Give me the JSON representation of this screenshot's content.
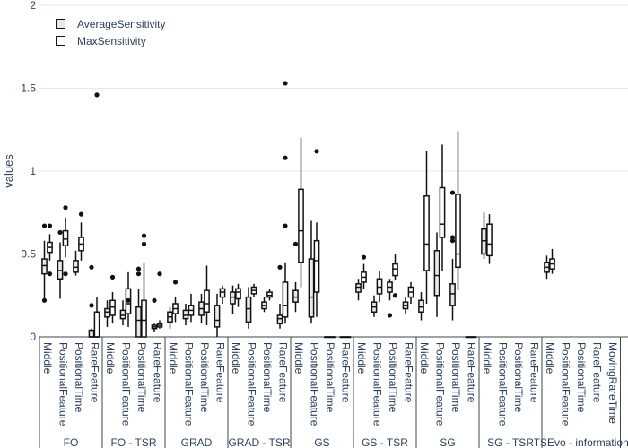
{
  "chart_data": {
    "type": "box",
    "ylabel": "values",
    "ylim": [
      0,
      2
    ],
    "yticks": [
      0,
      0.5,
      1,
      1.5,
      2
    ],
    "ytick_labels": [
      "0",
      "0.5",
      "1",
      "1.5",
      "2"
    ],
    "legend_position": "top-left",
    "series": [
      {
        "name": "AverageSensitivity",
        "fill": "#e8e8e8"
      },
      {
        "name": "MaxSensitivity",
        "fill": "#ffffff"
      }
    ],
    "groups": [
      {
        "label": "FO",
        "subcategories": [
          "Middle",
          "PositionalFeature",
          "PositionalTime",
          "RareFeature"
        ]
      },
      {
        "label": "FO - TSR",
        "subcategories": [
          "Middle",
          "PositionalFeature",
          "PositionalTime",
          "RareFeature"
        ]
      },
      {
        "label": "GRAD",
        "subcategories": [
          "Middle",
          "PositionalFeature",
          "PositionalTime",
          "RareFeature"
        ]
      },
      {
        "label": "GRAD - TSR",
        "subcategories": [
          "Middle",
          "PositionalFeature",
          "PositionalTime",
          "RareFeature"
        ]
      },
      {
        "label": "GS",
        "subcategories": [
          "Middle",
          "PositionalFeature",
          "PositionalTime",
          "RareFeature"
        ]
      },
      {
        "label": "GS - TSR",
        "subcategories": [
          "Middle",
          "PositionalFeature",
          "PositionalTime",
          "RareFeature"
        ]
      },
      {
        "label": "SG",
        "subcategories": [
          "Middle",
          "PositionalFeature",
          "PositionalTime",
          "RareFeature"
        ]
      },
      {
        "label": "SG - TSR",
        "subcategories": [
          "Middle",
          "PositionalFeature",
          "PositionalTime",
          "RareFeature"
        ]
      },
      {
        "label": "TSEvo - information",
        "subcategories": [
          "Middle",
          "PositionalFeature",
          "PositionalTime",
          "RareFeature",
          "MovingRareTime"
        ]
      }
    ],
    "boxes": [
      {
        "category": 0,
        "series": 0,
        "min": 0.22,
        "q1": 0.38,
        "median": 0.43,
        "q3": 0.47,
        "max": 0.58,
        "outliers": [
          0.67,
          0.22
        ]
      },
      {
        "category": 0,
        "series": 1,
        "min": 0.46,
        "q1": 0.51,
        "median": 0.54,
        "q3": 0.57,
        "max": 0.62,
        "outliers": [
          0.67,
          0.38
        ]
      },
      {
        "category": 1,
        "series": 0,
        "min": 0.23,
        "q1": 0.35,
        "median": 0.4,
        "q3": 0.46,
        "max": 0.57,
        "outliers": [
          0.63
        ]
      },
      {
        "category": 1,
        "series": 1,
        "min": 0.48,
        "q1": 0.55,
        "median": 0.59,
        "q3": 0.64,
        "max": 0.72,
        "outliers": [
          0.78,
          0.38
        ]
      },
      {
        "category": 2,
        "series": 0,
        "min": 0.37,
        "q1": 0.39,
        "median": 0.42,
        "q3": 0.46,
        "max": 0.52,
        "outliers": []
      },
      {
        "category": 2,
        "series": 1,
        "min": 0.46,
        "q1": 0.52,
        "median": 0.56,
        "q3": 0.6,
        "max": 0.69,
        "outliers": [
          0.74
        ]
      },
      {
        "category": 3,
        "series": 0,
        "min": 0.0,
        "q1": 0.0,
        "median": 0.0,
        "q3": 0.04,
        "max": 0.05,
        "outliers": [
          0.19,
          0.42
        ]
      },
      {
        "category": 3,
        "series": 1,
        "min": 0.0,
        "q1": 0.0,
        "median": 0.0,
        "q3": 0.15,
        "max": 0.24,
        "outliers": [
          1.46
        ]
      },
      {
        "category": 4,
        "series": 0,
        "min": 0.06,
        "q1": 0.12,
        "median": 0.15,
        "q3": 0.17,
        "max": 0.22,
        "outliers": []
      },
      {
        "category": 4,
        "series": 1,
        "min": 0.08,
        "q1": 0.13,
        "median": 0.18,
        "q3": 0.22,
        "max": 0.27,
        "outliers": [
          0.36
        ]
      },
      {
        "category": 5,
        "series": 0,
        "min": 0.07,
        "q1": 0.11,
        "median": 0.13,
        "q3": 0.16,
        "max": 0.22,
        "outliers": []
      },
      {
        "category": 5,
        "series": 1,
        "min": 0.06,
        "q1": 0.14,
        "median": 0.2,
        "q3": 0.29,
        "max": 0.39,
        "outliers": [
          0.22
        ]
      },
      {
        "category": 6,
        "series": 0,
        "min": 0.0,
        "q1": 0.0,
        "median": 0.1,
        "q3": 0.18,
        "max": 0.29,
        "outliers": [
          0.41,
          0.38
        ]
      },
      {
        "category": 6,
        "series": 1,
        "min": 0.0,
        "q1": 0.0,
        "median": 0.1,
        "q3": 0.22,
        "max": 0.45,
        "outliers": [
          0.61,
          0.56
        ]
      },
      {
        "category": 7,
        "series": 0,
        "min": 0.03,
        "q1": 0.05,
        "median": 0.06,
        "q3": 0.07,
        "max": 0.08,
        "outliers": [
          0.22
        ]
      },
      {
        "category": 7,
        "series": 1,
        "min": 0.05,
        "q1": 0.06,
        "median": 0.07,
        "q3": 0.08,
        "max": 0.1,
        "outliers": [
          0.38
        ]
      },
      {
        "category": 8,
        "series": 0,
        "min": 0.05,
        "q1": 0.09,
        "median": 0.12,
        "q3": 0.15,
        "max": 0.18,
        "outliers": []
      },
      {
        "category": 8,
        "series": 1,
        "min": 0.09,
        "q1": 0.14,
        "median": 0.17,
        "q3": 0.2,
        "max": 0.24,
        "outliers": [
          0.33
        ]
      },
      {
        "category": 9,
        "series": 0,
        "min": 0.07,
        "q1": 0.11,
        "median": 0.13,
        "q3": 0.16,
        "max": 0.2,
        "outliers": []
      },
      {
        "category": 9,
        "series": 1,
        "min": 0.09,
        "q1": 0.13,
        "median": 0.16,
        "q3": 0.19,
        "max": 0.26,
        "outliers": []
      },
      {
        "category": 10,
        "series": 0,
        "min": 0.08,
        "q1": 0.13,
        "median": 0.17,
        "q3": 0.21,
        "max": 0.26,
        "outliers": []
      },
      {
        "category": 10,
        "series": 1,
        "min": 0.07,
        "q1": 0.15,
        "median": 0.2,
        "q3": 0.28,
        "max": 0.43,
        "outliers": []
      },
      {
        "category": 11,
        "series": 0,
        "min": 0.0,
        "q1": 0.06,
        "median": 0.1,
        "q3": 0.19,
        "max": 0.26,
        "outliers": []
      },
      {
        "category": 11,
        "series": 1,
        "min": 0.2,
        "q1": 0.24,
        "median": 0.27,
        "q3": 0.29,
        "max": 0.31,
        "outliers": []
      },
      {
        "category": 12,
        "series": 0,
        "min": 0.14,
        "q1": 0.2,
        "median": 0.24,
        "q3": 0.27,
        "max": 0.31,
        "outliers": []
      },
      {
        "category": 12,
        "series": 1,
        "min": 0.18,
        "q1": 0.23,
        "median": 0.27,
        "q3": 0.29,
        "max": 0.32,
        "outliers": []
      },
      {
        "category": 13,
        "series": 0,
        "min": 0.05,
        "q1": 0.09,
        "median": 0.17,
        "q3": 0.24,
        "max": 0.3,
        "outliers": []
      },
      {
        "category": 13,
        "series": 1,
        "min": 0.24,
        "q1": 0.26,
        "median": 0.28,
        "q3": 0.3,
        "max": 0.32,
        "outliers": []
      },
      {
        "category": 14,
        "series": 0,
        "min": 0.15,
        "q1": 0.17,
        "median": 0.19,
        "q3": 0.21,
        "max": 0.24,
        "outliers": []
      },
      {
        "category": 14,
        "series": 1,
        "min": 0.22,
        "q1": 0.24,
        "median": 0.25,
        "q3": 0.27,
        "max": 0.29,
        "outliers": []
      },
      {
        "category": 15,
        "series": 0,
        "min": 0.05,
        "q1": 0.08,
        "median": 0.11,
        "q3": 0.13,
        "max": 0.2,
        "outliers": [
          0.42
        ]
      },
      {
        "category": 15,
        "series": 1,
        "min": 0.08,
        "q1": 0.12,
        "median": 0.19,
        "q3": 0.33,
        "max": 0.45,
        "outliers": [
          1.53,
          1.08,
          0.67
        ]
      },
      {
        "category": 16,
        "series": 0,
        "min": 0.15,
        "q1": 0.21,
        "median": 0.24,
        "q3": 0.28,
        "max": 0.33,
        "outliers": [
          0.56
        ]
      },
      {
        "category": 16,
        "series": 1,
        "min": 0.3,
        "q1": 0.45,
        "median": 0.64,
        "q3": 0.89,
        "max": 1.2,
        "outliers": []
      },
      {
        "category": 17,
        "series": 0,
        "min": 0.08,
        "q1": 0.12,
        "median": 0.24,
        "q3": 0.47,
        "max": 0.7,
        "outliers": []
      },
      {
        "category": 17,
        "series": 1,
        "min": 0.12,
        "q1": 0.27,
        "median": 0.46,
        "q3": 0.58,
        "max": 0.69,
        "outliers": [
          1.12
        ]
      },
      {
        "category": 18,
        "series": 0,
        "min": 0.0,
        "q1": 0.0,
        "median": 0.0,
        "q3": 0.0,
        "max": 0.0,
        "outliers": []
      },
      {
        "category": 18,
        "series": 1,
        "min": 0.0,
        "q1": 0.0,
        "median": 0.0,
        "q3": 0.0,
        "max": 0.0,
        "outliers": []
      },
      {
        "category": 19,
        "series": 0,
        "min": 0.0,
        "q1": 0.0,
        "median": 0.0,
        "q3": 0.0,
        "max": 0.0,
        "outliers": []
      },
      {
        "category": 19,
        "series": 1,
        "min": 0.0,
        "q1": 0.0,
        "median": 0.0,
        "q3": 0.0,
        "max": 0.0,
        "outliers": []
      },
      {
        "category": 20,
        "series": 0,
        "min": 0.22,
        "q1": 0.27,
        "median": 0.3,
        "q3": 0.32,
        "max": 0.35,
        "outliers": []
      },
      {
        "category": 20,
        "series": 1,
        "min": 0.29,
        "q1": 0.33,
        "median": 0.36,
        "q3": 0.39,
        "max": 0.44,
        "outliers": [
          0.48
        ]
      },
      {
        "category": 21,
        "series": 0,
        "min": 0.12,
        "q1": 0.15,
        "median": 0.18,
        "q3": 0.21,
        "max": 0.25,
        "outliers": []
      },
      {
        "category": 21,
        "series": 1,
        "min": 0.21,
        "q1": 0.26,
        "median": 0.3,
        "q3": 0.35,
        "max": 0.4,
        "outliers": []
      },
      {
        "category": 22,
        "series": 0,
        "min": 0.22,
        "q1": 0.27,
        "median": 0.3,
        "q3": 0.33,
        "max": 0.35,
        "outliers": [
          0.13
        ]
      },
      {
        "category": 22,
        "series": 1,
        "min": 0.34,
        "q1": 0.37,
        "median": 0.41,
        "q3": 0.44,
        "max": 0.5,
        "outliers": [
          0.25
        ]
      },
      {
        "category": 23,
        "series": 0,
        "min": 0.14,
        "q1": 0.17,
        "median": 0.19,
        "q3": 0.21,
        "max": 0.24,
        "outliers": []
      },
      {
        "category": 23,
        "series": 1,
        "min": 0.2,
        "q1": 0.24,
        "median": 0.27,
        "q3": 0.3,
        "max": 0.33,
        "outliers": []
      },
      {
        "category": 24,
        "series": 0,
        "min": 0.1,
        "q1": 0.15,
        "median": 0.18,
        "q3": 0.22,
        "max": 0.27,
        "outliers": []
      },
      {
        "category": 24,
        "series": 1,
        "min": 0.2,
        "q1": 0.4,
        "median": 0.56,
        "q3": 0.85,
        "max": 1.12,
        "outliers": []
      },
      {
        "category": 25,
        "series": 0,
        "min": 0.12,
        "q1": 0.25,
        "median": 0.37,
        "q3": 0.52,
        "max": 0.63,
        "outliers": []
      },
      {
        "category": 25,
        "series": 1,
        "min": 0.4,
        "q1": 0.6,
        "median": 0.68,
        "q3": 0.9,
        "max": 1.16,
        "outliers": []
      },
      {
        "category": 26,
        "series": 0,
        "min": 0.1,
        "q1": 0.19,
        "median": 0.26,
        "q3": 0.32,
        "max": 0.47,
        "outliers": [
          0.87,
          0.6,
          0.58
        ]
      },
      {
        "category": 26,
        "series": 1,
        "min": 0.28,
        "q1": 0.42,
        "median": 0.5,
        "q3": 0.86,
        "max": 1.24,
        "outliers": []
      },
      {
        "category": 27,
        "series": 0,
        "min": 0.0,
        "q1": 0.0,
        "median": 0.0,
        "q3": 0.0,
        "max": 0.0,
        "outliers": []
      },
      {
        "category": 27,
        "series": 1,
        "min": 0.0,
        "q1": 0.0,
        "median": 0.0,
        "q3": 0.0,
        "max": 0.0,
        "outliers": []
      },
      {
        "category": 28,
        "series": 0,
        "min": 0.47,
        "q1": 0.5,
        "median": 0.58,
        "q3": 0.65,
        "max": 0.75,
        "outliers": []
      },
      {
        "category": 28,
        "series": 1,
        "min": 0.44,
        "q1": 0.49,
        "median": 0.56,
        "q3": 0.68,
        "max": 0.74,
        "outliers": []
      },
      {
        "category": 32,
        "series": 0,
        "min": 0.35,
        "q1": 0.39,
        "median": 0.42,
        "q3": 0.45,
        "max": 0.49,
        "outliers": []
      },
      {
        "category": 32,
        "series": 1,
        "min": 0.38,
        "q1": 0.41,
        "median": 0.44,
        "q3": 0.47,
        "max": 0.53,
        "outliers": []
      }
    ]
  }
}
